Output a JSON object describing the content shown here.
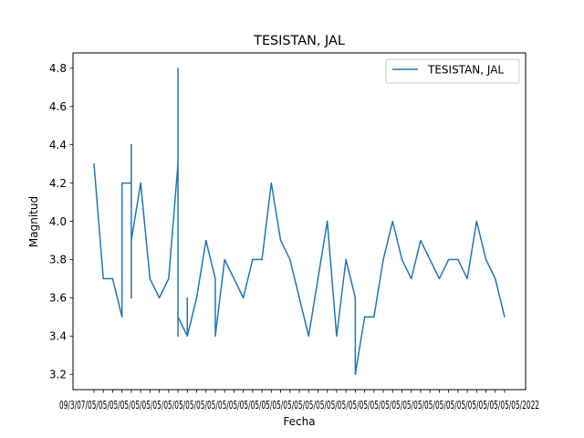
{
  "chart_data": {
    "type": "line",
    "title": "TESISTAN, JAL",
    "xlabel": "Fecha",
    "ylabel": "Magnitud",
    "ylim": [
      3.12,
      4.88
    ],
    "yticks": [
      "3.2",
      "3.4",
      "3.6",
      "3.8",
      "4.0",
      "4.2",
      "4.4",
      "4.6",
      "4.8"
    ],
    "grid": false,
    "legend_position": "top-right",
    "x_tick_labels_overlapping": "09/3/07/05/05/05/05/05/05/05/05/05/05/05/05/05/05/05/05/05/05/05/05/05/05/05/05/05/05/05/05/05/05/05/05/05/05/05/05/05/05/05/05/2022",
    "series": [
      {
        "name": "TESISTAN, JAL",
        "color": "#1f77b4",
        "values": [
          4.3,
          3.7,
          3.7,
          3.5,
          4.2,
          4.2,
          4.4,
          3.6,
          3.9,
          4.2,
          3.7,
          3.6,
          3.7,
          4.3,
          4.8,
          3.4,
          3.5,
          3.4,
          3.6,
          3.4,
          3.6,
          3.9,
          3.7,
          3.4,
          3.8,
          3.7,
          3.6,
          3.8,
          3.8,
          4.2,
          3.9,
          3.8,
          3.6,
          3.4,
          3.7,
          4.0,
          3.4,
          3.8,
          3.6,
          3.2,
          3.5,
          3.5,
          3.8,
          4.0,
          3.8,
          3.7,
          3.9,
          3.8,
          3.7,
          3.8,
          3.8,
          3.7,
          4.0,
          3.8,
          3.7,
          3.5
        ],
        "x_index": [
          0,
          1,
          2,
          3,
          3,
          4,
          4,
          4,
          4,
          5,
          6,
          7,
          8,
          9,
          9,
          9,
          9,
          10,
          10,
          10,
          11,
          12,
          13,
          13,
          14,
          15,
          16,
          17,
          18,
          19,
          20,
          21,
          22,
          23,
          24,
          25,
          26,
          27,
          28,
          28,
          29,
          30,
          31,
          32,
          33,
          34,
          35,
          36,
          37,
          38,
          39,
          40,
          41,
          42,
          43,
          44
        ]
      }
    ]
  }
}
